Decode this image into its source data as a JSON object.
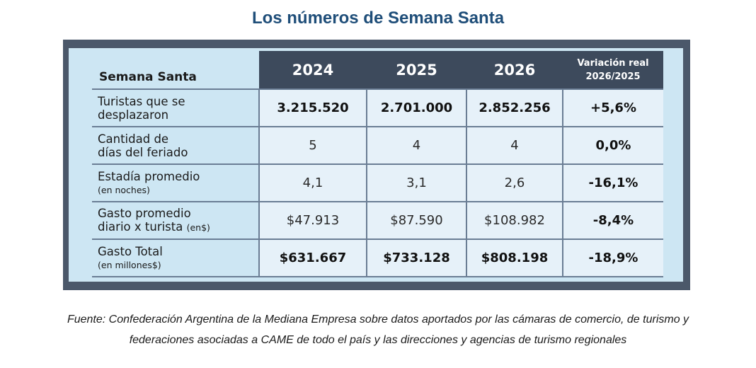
{
  "title": "Los números de Semana Santa",
  "table": {
    "header": {
      "label": "Semana Santa",
      "years": [
        "2024",
        "2025",
        "2026"
      ],
      "variation_line1": "Variación real",
      "variation_line2": "2026/2025"
    },
    "rows": [
      {
        "label_line1": "Turistas que se",
        "label_line2": "desplazaron",
        "label_suffix": "",
        "values": [
          "3.215.520",
          "2.701.000",
          "2.852.256"
        ],
        "variation": "+5,6%"
      },
      {
        "label_line1": "Cantidad de",
        "label_line2": "días del feriado",
        "label_suffix": "",
        "values": [
          "5",
          "4",
          "4"
        ],
        "variation": "0,0%"
      },
      {
        "label_line1": "Estadía promedio",
        "label_line2": "(en noches)",
        "label_suffix": "",
        "values": [
          "4,1",
          "3,1",
          "2,6"
        ],
        "variation": "-16,1%"
      },
      {
        "label_line1": "Gasto promedio",
        "label_line2": "diario x turista",
        "label_suffix": "(en$)",
        "values": [
          "$47.913",
          "$87.590",
          "$108.982"
        ],
        "variation": "-8,4%"
      },
      {
        "label_line1": "Gasto Total",
        "label_line2": "(en millones$)",
        "label_suffix": "",
        "values": [
          "$631.667",
          "$733.128",
          "$808.198"
        ],
        "variation": "-18,9%"
      }
    ]
  },
  "source_line1": "Fuente: Confederación Argentina de la Mediana Empresa sobre datos aportados por las cámaras de comercio, de turismo y",
  "source_line2": "federaciones asociadas a CAME de todo el país y las direcciones y agencias de turismo regionales"
}
